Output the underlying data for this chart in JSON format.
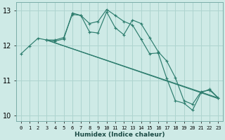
{
  "xlabel": "Humidex (Indice chaleur)",
  "bg_color": "#ceeae6",
  "line_color": "#2d7d6e",
  "grid_color": "#aed4cf",
  "spine_color": "#7aada8",
  "xlim": [
    -0.5,
    23.5
  ],
  "ylim": [
    9.85,
    13.22
  ],
  "yticks": [
    10,
    11,
    12,
    13
  ],
  "xtick_vals": [
    0,
    1,
    2,
    3,
    4,
    5,
    6,
    7,
    8,
    9,
    10,
    11,
    12,
    13,
    14,
    15,
    16,
    17,
    18,
    19,
    20,
    21,
    22,
    23
  ],
  "xtick_labels": [
    "0",
    "1",
    "2",
    "3",
    "4",
    "5",
    "6",
    "7",
    "8",
    "9",
    "10",
    "11",
    "12",
    "13",
    "14",
    "15",
    "16",
    "17",
    "18",
    "19",
    "20",
    "21",
    "22",
    "23"
  ],
  "line1_x": [
    0,
    1,
    2,
    3,
    4,
    5,
    6,
    7,
    8,
    9,
    10,
    11,
    12,
    13,
    14,
    15,
    16,
    17,
    18,
    19,
    20,
    21,
    22,
    23
  ],
  "line1_y": [
    11.75,
    11.98,
    12.2,
    12.15,
    12.15,
    12.22,
    12.88,
    12.85,
    12.62,
    12.68,
    13.02,
    12.85,
    12.68,
    12.58,
    12.18,
    11.76,
    11.78,
    11.05,
    10.42,
    10.35,
    10.15,
    10.65,
    10.75,
    10.5
  ],
  "line2_x": [
    3,
    4,
    5,
    6,
    7,
    8,
    9,
    10,
    11,
    12,
    13,
    14,
    15,
    16,
    17,
    18,
    19,
    20,
    21,
    22,
    23
  ],
  "line2_y": [
    12.15,
    12.12,
    12.18,
    12.92,
    12.85,
    12.38,
    12.35,
    12.95,
    12.5,
    12.3,
    12.72,
    12.62,
    12.22,
    11.82,
    11.55,
    11.08,
    10.42,
    10.32,
    10.68,
    10.72,
    10.5
  ],
  "line3_x": [
    3,
    23
  ],
  "line3_y": [
    12.15,
    10.5
  ],
  "line4_x": [
    3,
    23
  ],
  "line4_y": [
    12.15,
    10.48
  ]
}
